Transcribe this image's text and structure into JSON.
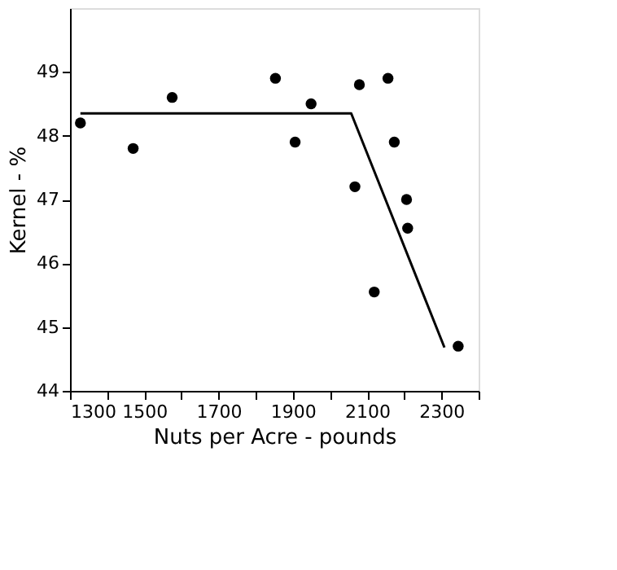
{
  "chart_data": {
    "type": "scatter",
    "xlabel": "Nuts per Acre - pounds",
    "ylabel": "Kernel - %",
    "x": [
      1328,
      1470,
      1575,
      1853,
      1906,
      1949,
      2067,
      2079,
      2119,
      2156,
      2173,
      2206,
      2209,
      2345
    ],
    "series": [
      {
        "color": "#000000",
        "marker": "circle",
        "values": [
          48.2,
          47.8,
          48.6,
          48.9,
          47.9,
          48.5,
          47.2,
          48.8,
          45.55,
          48.9,
          47.9,
          47.0,
          46.55,
          44.7
        ]
      },
      {
        "type": "line",
        "marker": "none",
        "color": "#000000",
        "x": [
          1328,
          2057,
          2308
        ],
        "values": [
          48.35,
          48.35,
          44.68
        ]
      }
    ],
    "xlim": [
      1300,
      2400
    ],
    "ylim": [
      44,
      50
    ],
    "xticks": [
      1300,
      {
        "value": 1400,
        "label": null
      },
      1500,
      {
        "value": 1600,
        "label": null
      },
      1700,
      {
        "value": 1800,
        "label": null
      },
      1900,
      {
        "value": 2000,
        "label": null
      },
      2100,
      {
        "value": 2200,
        "label": null
      },
      2300,
      {
        "value": 2400,
        "label": null
      }
    ],
    "yticks": [
      44,
      45,
      46,
      47,
      48,
      49
    ]
  }
}
